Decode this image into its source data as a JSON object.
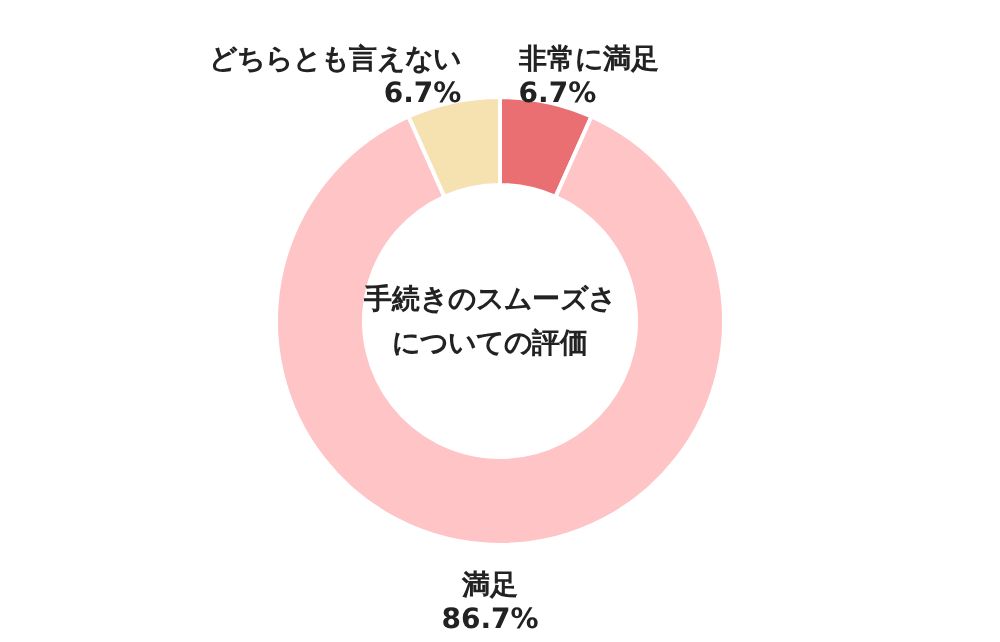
{
  "chart_data": {
    "type": "donut",
    "title": "手続きのスムーズさについての評価",
    "categories": [
      "非常に満足",
      "満足",
      "どちらとも言えない"
    ],
    "values": [
      6.7,
      86.7,
      6.7
    ],
    "value_labels": [
      "6.7%",
      "86.7%",
      "6.7%"
    ],
    "colors": [
      "#e96f73",
      "#fec4c6",
      "#f6e1b0"
    ]
  }
}
